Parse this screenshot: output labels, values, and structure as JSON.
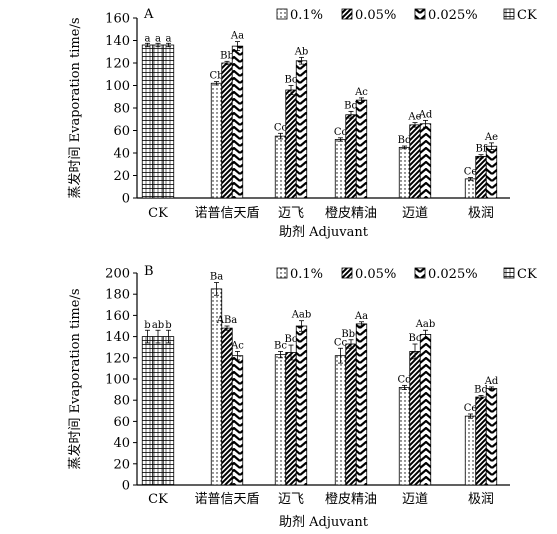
{
  "chart_data": [
    {
      "type": "bar",
      "panel_label": "A",
      "ylabel": "蒸发时间 Evaporation time/s",
      "xlabel": "助剂 Adjuvant",
      "ylim": [
        0,
        160
      ],
      "yticks": [
        0,
        20,
        40,
        60,
        80,
        100,
        120,
        140,
        160
      ],
      "legend_position": "top-right",
      "categories": [
        "CK",
        "诺普信天盾",
        "迈飞",
        "橙皮精油",
        "迈道",
        "极润"
      ],
      "series": [
        {
          "name": "0.1%",
          "pattern": "dots",
          "values": [
            null,
            102,
            55,
            52,
            45,
            17
          ],
          "errors": [
            null,
            1.5,
            2.5,
            1.5,
            1.2,
            1.2
          ],
          "labels": [
            "",
            "Cb",
            "Cc",
            "Cc",
            "Bd",
            "Ce"
          ]
        },
        {
          "name": "0.05%",
          "pattern": "diag",
          "values": [
            null,
            120,
            96,
            74,
            65,
            37
          ],
          "errors": [
            null,
            1.5,
            4,
            3,
            2,
            1.5
          ],
          "labels": [
            "",
            "Bb",
            "Bc",
            "Bd",
            "Ae",
            "Bf"
          ]
        },
        {
          "name": "0.025%",
          "pattern": "chevron",
          "values": [
            null,
            135,
            122,
            87,
            66,
            46
          ],
          "errors": [
            null,
            4,
            3,
            2,
            3,
            3
          ],
          "labels": [
            "",
            "Aa",
            "Ab",
            "Ac",
            "Ad",
            "Ae"
          ]
        },
        {
          "name": "CK",
          "pattern": "grid",
          "values": [
            136,
            null,
            null,
            null,
            null,
            null
          ],
          "errors": [
            1.5,
            null,
            null,
            null,
            null,
            null
          ],
          "labels": [
            "a",
            "",
            "",
            "",
            "",
            ""
          ]
        }
      ],
      "ck_bar_labels": [
        "a",
        "a",
        "a"
      ]
    },
    {
      "type": "bar",
      "panel_label": "B",
      "ylabel": "蒸发时间 Evaporation time/s",
      "xlabel": "助剂 Adjuvant",
      "ylim": [
        0,
        200
      ],
      "yticks": [
        0,
        20,
        40,
        60,
        80,
        100,
        120,
        140,
        160,
        180,
        200
      ],
      "legend_position": "top-right",
      "categories": [
        "CK",
        "诺普信天盾",
        "迈飞",
        "橙皮精油",
        "迈道",
        "极润"
      ],
      "series": [
        {
          "name": "0.1%",
          "pattern": "dots",
          "values": [
            null,
            185,
            123,
            122,
            92,
            65
          ],
          "errors": [
            null,
            6,
            3,
            7,
            2,
            2
          ],
          "labels": [
            "",
            "Ba",
            "Bc",
            "Cc",
            "Cd",
            "Ce"
          ]
        },
        {
          "name": "0.05%",
          "pattern": "diag",
          "values": [
            null,
            148,
            125,
            133,
            126,
            83
          ],
          "errors": [
            null,
            2,
            7,
            4,
            7,
            1.5
          ],
          "labels": [
            "",
            "ABa",
            "Bc",
            "Bbc",
            "Bc",
            "Bd"
          ]
        },
        {
          "name": "0.025%",
          "pattern": "chevron",
          "values": [
            null,
            122,
            150,
            152,
            142,
            91
          ],
          "errors": [
            null,
            4,
            5,
            2,
            4,
            1.5
          ],
          "labels": [
            "",
            "Ac",
            "Aab",
            "Aa",
            "Aab",
            "Ad"
          ]
        },
        {
          "name": "CK",
          "pattern": "grid",
          "values": [
            140,
            null,
            null,
            null,
            null,
            null
          ],
          "errors": [
            6,
            null,
            null,
            null,
            null,
            null
          ],
          "labels": [
            "b",
            "",
            "",
            "",
            "",
            ""
          ]
        }
      ],
      "ck_bar_labels": [
        "b",
        "ab",
        "b"
      ]
    }
  ]
}
